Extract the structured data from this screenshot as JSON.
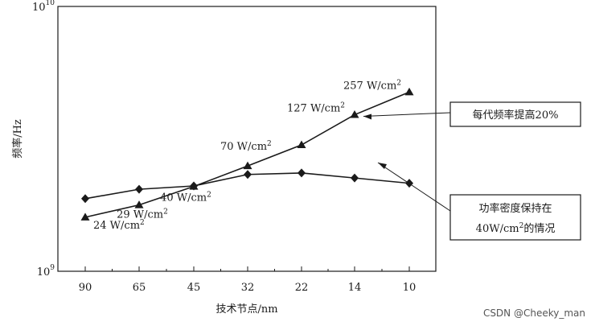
{
  "chart_data": {
    "type": "line",
    "xlabel": "技术节点/nm",
    "ylabel": "频率/Hz",
    "categories": [
      "90",
      "65",
      "45",
      "32",
      "22",
      "14",
      "10"
    ],
    "y_scale": "log",
    "ylim": [
      1000000000,
      10000000000
    ],
    "y_ticks": [
      {
        "base": "10",
        "exp": "9"
      },
      {
        "base": "10",
        "exp": "10"
      }
    ],
    "series": [
      {
        "marker": "triangle",
        "values": [
          1600000000,
          1780000000,
          2090000000,
          2500000000,
          3000000000,
          3900000000,
          4750000000
        ],
        "point_labels": [
          {
            "text": "24 W/cm",
            "sup": "2"
          },
          {
            "text": "29 W/cm",
            "sup": "2"
          },
          {
            "text": "40 W/cm",
            "sup": "2"
          },
          {
            "text": "70 W/cm",
            "sup": "2"
          },
          {
            "text": "",
            "sup": ""
          },
          {
            "text": "127 W/cm",
            "sup": "2"
          },
          {
            "text": "257 W/cm",
            "sup": "2"
          }
        ]
      },
      {
        "marker": "diamond",
        "values": [
          1880000000,
          2040000000,
          2100000000,
          2320000000,
          2350000000,
          2250000000,
          2150000000
        ]
      }
    ],
    "callouts": [
      {
        "lines": [
          "每代频率提高20%"
        ]
      },
      {
        "lines": [
          {
            "text": "功率密度保持在"
          },
          {
            "text": "40W/cm",
            "sup": "2",
            "after": "的情况"
          }
        ]
      }
    ]
  },
  "watermark": "CSDN @Cheeky_man"
}
